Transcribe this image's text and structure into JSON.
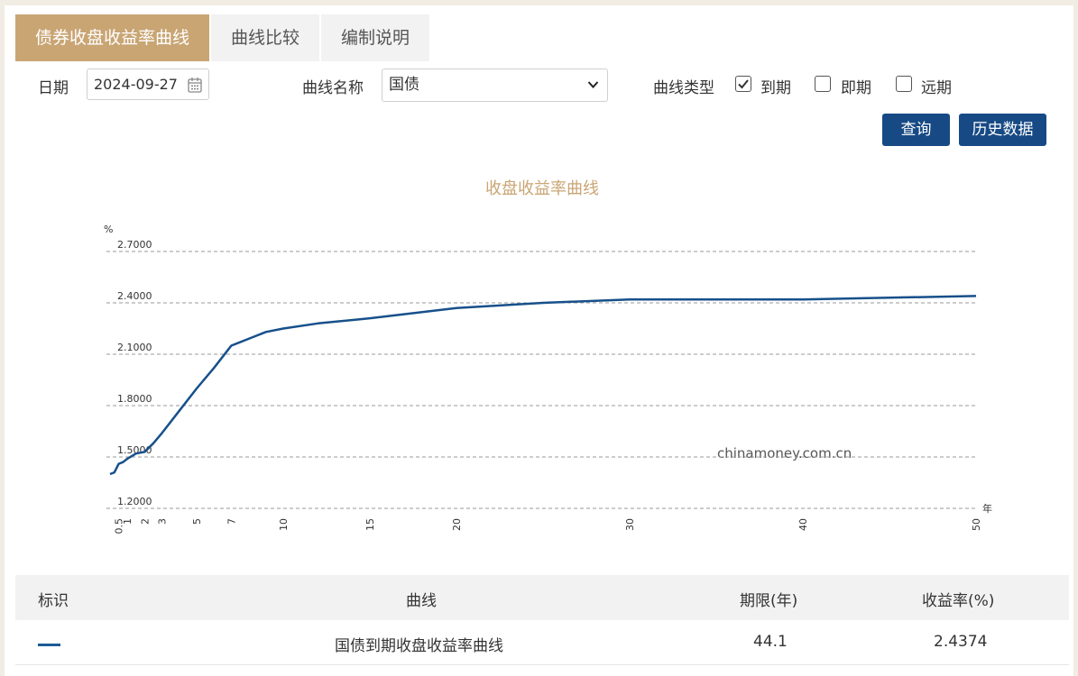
{
  "tabs": [
    {
      "label": "债券收盘收益率曲线",
      "active": true
    },
    {
      "label": "曲线比较",
      "active": false
    },
    {
      "label": "编制说明",
      "active": false
    }
  ],
  "form": {
    "date_label": "日期",
    "date_value": "2024-09-27",
    "curve_name_label": "曲线名称",
    "curve_name_value": "国债",
    "curve_type_label": "曲线类型",
    "types": [
      {
        "label": "到期",
        "checked": true
      },
      {
        "label": "即期",
        "checked": false
      },
      {
        "label": "远期",
        "checked": false
      }
    ]
  },
  "buttons": {
    "query": "查询",
    "history": "历史数据"
  },
  "chart_data": {
    "type": "line",
    "title": "收盘收益率曲线",
    "ylabel": "%",
    "xlabel": "年",
    "watermark": "chinamoney.com.cn",
    "ylim": [
      1.2,
      2.7
    ],
    "y_ticks": [
      "2.7000",
      "2.4000",
      "2.1000",
      "1.8000",
      "1.5000",
      "1.2000"
    ],
    "y_tick_values": [
      2.7,
      2.4,
      2.1,
      1.8,
      1.5,
      1.2
    ],
    "xlim": [
      0,
      50
    ],
    "x_ticks": [
      "0.5",
      "1",
      "2",
      "3",
      "5",
      "7",
      "10",
      "15",
      "20",
      "30",
      "40",
      "50"
    ],
    "x_tick_values": [
      0.5,
      1,
      2,
      3,
      5,
      7,
      10,
      15,
      20,
      30,
      40,
      50
    ],
    "grid": true,
    "series_color": "#17508a",
    "series": [
      {
        "name": "国债到期收盘收益率曲线",
        "x": [
          0,
          0.25,
          0.5,
          0.75,
          1,
          1.5,
          2,
          2.5,
          3,
          4,
          5,
          6,
          7,
          8,
          9,
          10,
          12,
          15,
          20,
          25,
          30,
          35,
          40,
          45,
          50
        ],
        "y": [
          1.4,
          1.41,
          1.46,
          1.47,
          1.49,
          1.52,
          1.53,
          1.58,
          1.64,
          1.77,
          1.9,
          2.02,
          2.15,
          2.19,
          2.23,
          2.25,
          2.28,
          2.31,
          2.37,
          2.4,
          2.42,
          2.42,
          2.42,
          2.43,
          2.44
        ]
      }
    ]
  },
  "table": {
    "headers": [
      "标识",
      "曲线",
      "期限(年)",
      "收益率(%)"
    ],
    "rows": [
      {
        "curve": "国债到期收盘收益率曲线",
        "term": "44.1",
        "yield": "2.4374"
      }
    ]
  }
}
